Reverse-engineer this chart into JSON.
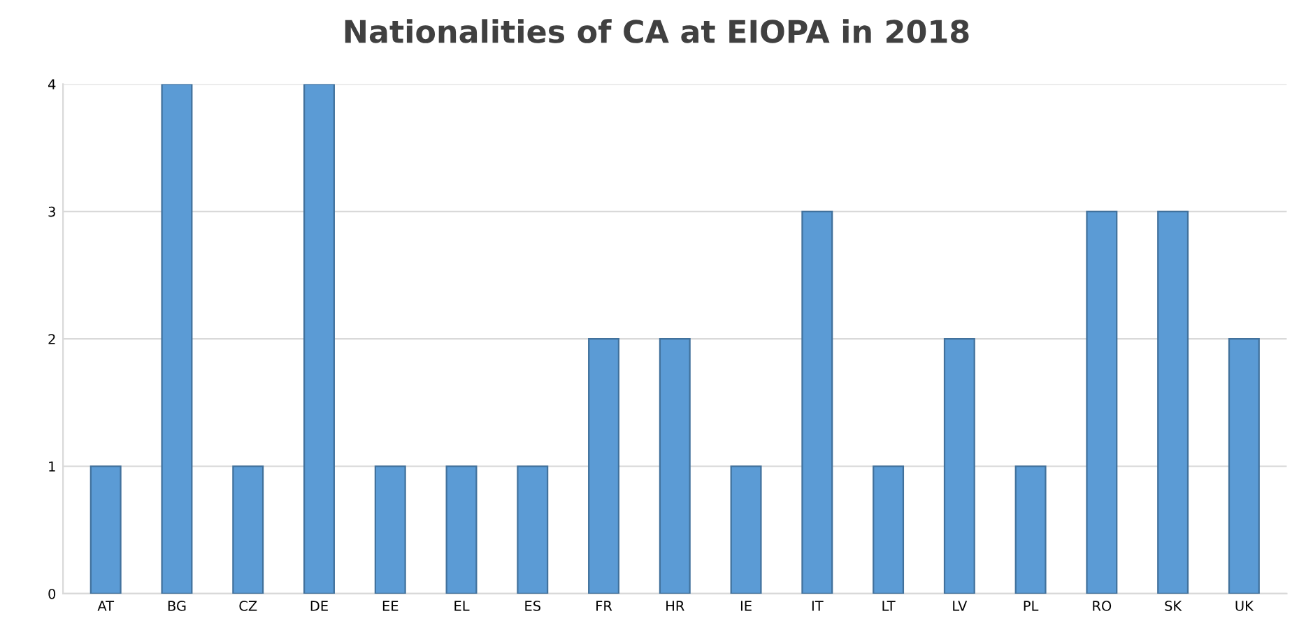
{
  "chart_data": {
    "type": "bar",
    "title": "Nationalities of CA at EIOPA in 2018",
    "categories": [
      "AT",
      "BG",
      "CZ",
      "DE",
      "EE",
      "EL",
      "ES",
      "FR",
      "HR",
      "IE",
      "IT",
      "LT",
      "LV",
      "PL",
      "RO",
      "SK",
      "UK"
    ],
    "values": [
      1,
      4,
      1,
      4,
      1,
      1,
      1,
      2,
      2,
      1,
      3,
      1,
      2,
      1,
      3,
      3,
      2
    ],
    "color": "#5b9bd5",
    "ylim": [
      0,
      4
    ],
    "yticks": [
      0,
      1,
      2,
      3,
      4
    ],
    "grid": "y"
  }
}
